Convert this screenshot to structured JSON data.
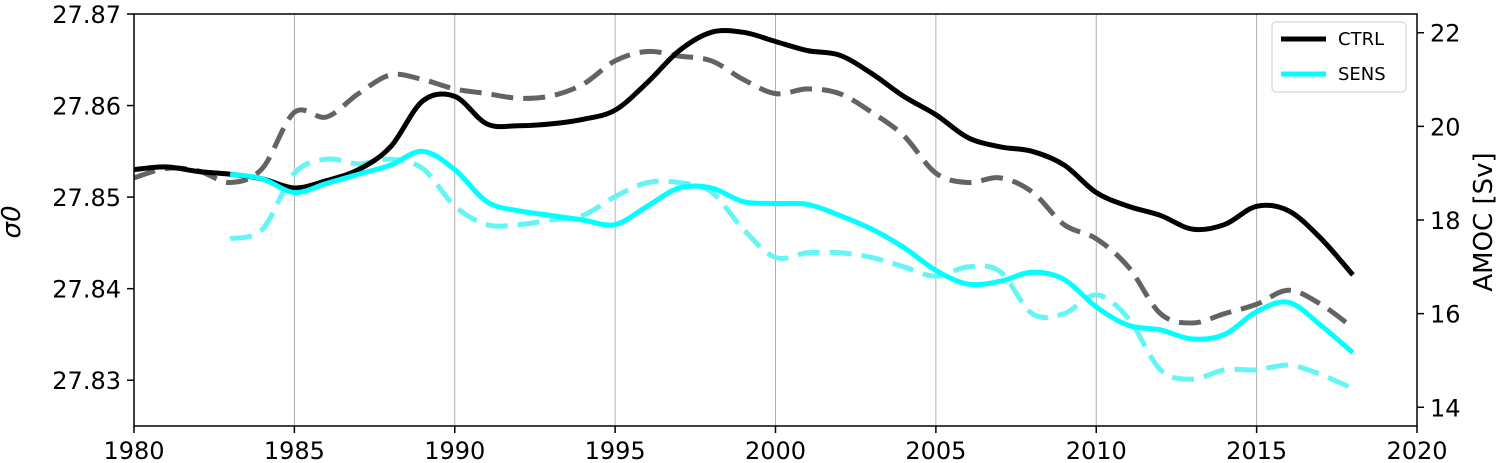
{
  "chart_data": {
    "type": "line",
    "title": "",
    "xlabel": "",
    "ylabel_left": "σ0",
    "ylabel_right": "AMOC [Sv]",
    "xlim": [
      1980,
      2020
    ],
    "ylim_left": [
      27.825,
      27.87
    ],
    "ylim_right": [
      13.6,
      22.4
    ],
    "x_ticks": [
      1980,
      1985,
      1990,
      1995,
      2000,
      2005,
      2010,
      2015,
      2020
    ],
    "y_left_ticks": [
      "27.83",
      "27.84",
      "27.85",
      "27.86",
      "27.87"
    ],
    "y_right_ticks": [
      "14",
      "16",
      "18",
      "20",
      "22"
    ],
    "grid": "vertical lines at x ticks",
    "legend_position": "top-right",
    "legend": [
      {
        "label": "CTRL",
        "color": "#000000"
      },
      {
        "label": "SENS",
        "color": "#00ffff"
      }
    ],
    "series": [
      {
        "name": "CTRL",
        "axis": "left",
        "style": "solid",
        "color": "#000000",
        "x": [
          1980,
          1981,
          1982,
          1983,
          1984,
          1985,
          1986,
          1987,
          1988,
          1989,
          1990,
          1991,
          1992,
          1993,
          1994,
          1995,
          1996,
          1997,
          1998,
          1999,
          2000,
          2001,
          2002,
          2003,
          2004,
          2005,
          2006,
          2007,
          2008,
          2009,
          2010,
          2011,
          2012,
          2013,
          2014,
          2015,
          2016,
          2017,
          2018
        ],
        "y": [
          27.853,
          27.8533,
          27.8528,
          27.8525,
          27.852,
          27.851,
          27.8518,
          27.853,
          27.8555,
          27.8605,
          27.861,
          27.858,
          27.8578,
          27.858,
          27.8585,
          27.8595,
          27.8625,
          27.866,
          27.868,
          27.868,
          27.867,
          27.866,
          27.8655,
          27.8635,
          27.861,
          27.859,
          27.8565,
          27.8555,
          27.855,
          27.8535,
          27.8505,
          27.849,
          27.848,
          27.8465,
          27.847,
          27.849,
          27.8485,
          27.8455,
          27.8415
        ]
      },
      {
        "name": "SENS",
        "axis": "left",
        "style": "solid",
        "color": "#00ffff",
        "x": [
          1983,
          1984,
          1985,
          1986,
          1987,
          1988,
          1989,
          1990,
          1991,
          1992,
          1993,
          1994,
          1995,
          1996,
          1997,
          1998,
          1999,
          2000,
          2001,
          2002,
          2003,
          2004,
          2005,
          2006,
          2007,
          2008,
          2009,
          2010,
          2011,
          2012,
          2013,
          2014,
          2015,
          2016,
          2017,
          2018
        ],
        "y": [
          27.8525,
          27.852,
          27.8505,
          27.8515,
          27.8525,
          27.8535,
          27.855,
          27.853,
          27.8495,
          27.8485,
          27.848,
          27.8475,
          27.847,
          27.849,
          27.851,
          27.851,
          27.8495,
          27.8493,
          27.8492,
          27.848,
          27.8465,
          27.8445,
          27.842,
          27.8405,
          27.8408,
          27.8418,
          27.841,
          27.838,
          27.836,
          27.8355,
          27.8345,
          27.835,
          27.8375,
          27.8385,
          27.836,
          27.833
        ]
      },
      {
        "name": "",
        "axis": "right",
        "style": "dashed",
        "color": "#636363",
        "x": [
          1980,
          1981,
          1982,
          1983,
          1984,
          1985,
          1986,
          1987,
          1988,
          1989,
          1990,
          1991,
          1992,
          1993,
          1994,
          1995,
          1996,
          1997,
          1998,
          1999,
          2000,
          2001,
          2002,
          2003,
          2004,
          2005,
          2006,
          2007,
          2008,
          2009,
          2010,
          2011,
          2012,
          2013,
          2014,
          2015,
          2016,
          2017,
          2018
        ],
        "y": [
          18.9,
          19.1,
          19.05,
          18.8,
          19.1,
          20.3,
          20.2,
          20.7,
          21.1,
          21.0,
          20.8,
          20.7,
          20.6,
          20.65,
          20.9,
          21.4,
          21.6,
          21.5,
          21.4,
          21.0,
          20.7,
          20.8,
          20.7,
          20.3,
          19.8,
          19.0,
          18.8,
          18.9,
          18.6,
          17.9,
          17.6,
          17.0,
          16.0,
          15.8,
          16.0,
          16.2,
          16.5,
          16.2,
          15.7
        ]
      },
      {
        "name": "",
        "axis": "right",
        "style": "dashed",
        "color": "#66f5f5",
        "x": [
          1983,
          1984,
          1985,
          1986,
          1987,
          1988,
          1989,
          1990,
          1991,
          1992,
          1993,
          1994,
          1995,
          1996,
          1997,
          1998,
          1999,
          2000,
          2001,
          2002,
          2003,
          2004,
          2005,
          2006,
          2007,
          2008,
          2009,
          2010,
          2011,
          2012,
          2013,
          2014,
          2015,
          2016,
          2017,
          2018
        ],
        "y": [
          17.6,
          17.8,
          19.0,
          19.3,
          19.2,
          19.3,
          19.1,
          18.3,
          17.9,
          17.9,
          18.0,
          18.1,
          18.5,
          18.8,
          18.8,
          18.6,
          17.8,
          17.2,
          17.3,
          17.3,
          17.2,
          17.0,
          16.8,
          17.0,
          16.9,
          16.0,
          16.0,
          16.4,
          15.9,
          14.8,
          14.6,
          14.8,
          14.8,
          14.9,
          14.7,
          14.4
        ]
      }
    ]
  }
}
